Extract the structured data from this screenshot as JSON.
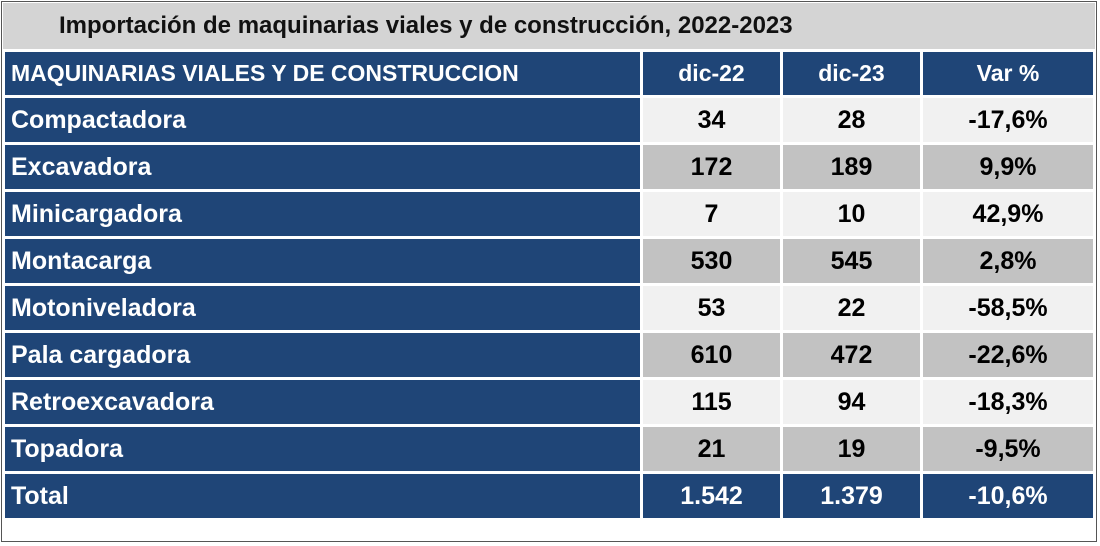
{
  "title": "Importación de maquinarias viales y de construcción, 2022-2023",
  "table": {
    "header": [
      "MAQUINARIAS VIALES Y DE CONSTRUCCION",
      "dic-22",
      "dic-23",
      "Var %"
    ],
    "rows": [
      [
        "Compactadora",
        "34",
        "28",
        "-17,6%"
      ],
      [
        "Excavadora",
        "172",
        "189",
        "9,9%"
      ],
      [
        "Minicargadora",
        "7",
        "10",
        "42,9%"
      ],
      [
        "Montacarga",
        "530",
        "545",
        "2,8%"
      ],
      [
        "Motoniveladora",
        "53",
        "22",
        "-58,5%"
      ],
      [
        "Pala cargadora",
        "610",
        "472",
        "-22,6%"
      ],
      [
        "Retroexcavadora",
        "115",
        "94",
        "-18,3%"
      ],
      [
        "Topadora",
        "21",
        "19",
        "-9,5%"
      ]
    ],
    "total": [
      "Total",
      "1.542",
      "1.379",
      "-10,6%"
    ]
  }
}
